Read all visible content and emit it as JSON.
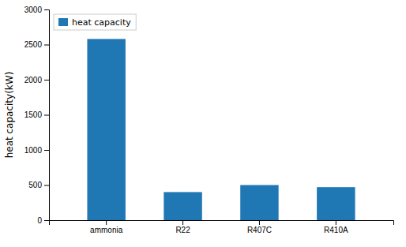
{
  "chart_data": {
    "type": "bar",
    "ylabel": "heat capacity(kW)",
    "categories": [
      "ammonia",
      "R22",
      "R407C",
      "R410A"
    ],
    "series": [
      {
        "name": "heat capacity",
        "values": [
          2580,
          400,
          500,
          470
        ]
      }
    ],
    "ylim": [
      0,
      3000
    ],
    "yticks": [
      0,
      500,
      1000,
      1500,
      2000,
      2500,
      3000
    ],
    "grid": false,
    "legend": "upper left"
  }
}
